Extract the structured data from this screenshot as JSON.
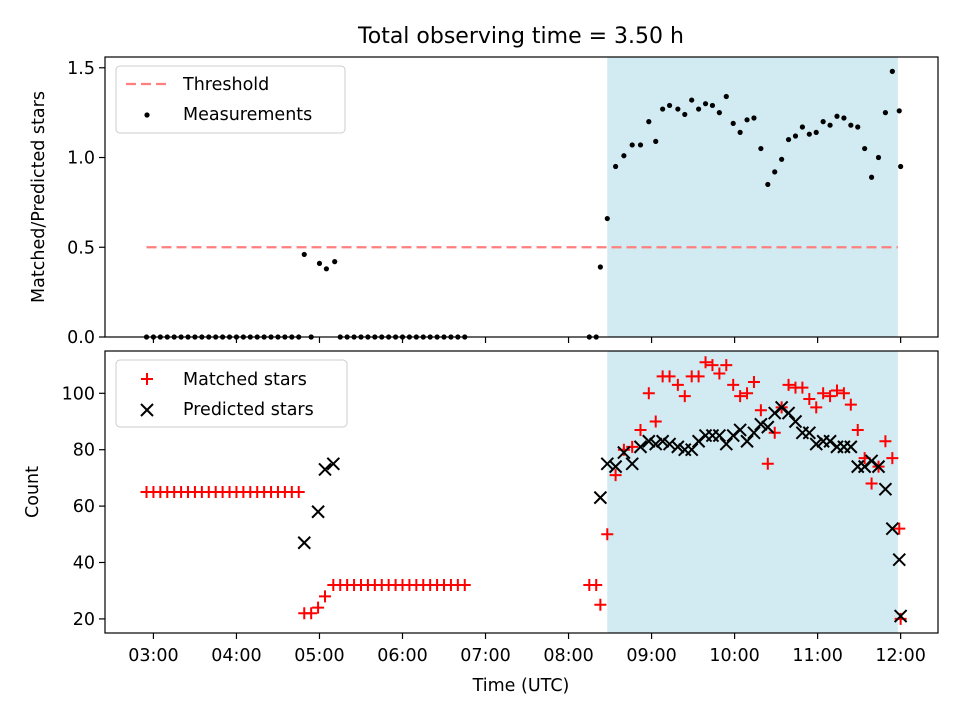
{
  "figure": {
    "title": "Total observing time = 3.50 h",
    "xlabel": "Time (UTC)"
  },
  "chart_data": [
    {
      "type": "scatter",
      "ylabel": "Matched/Predicted stars",
      "xlim": [
        "02:25",
        "12:27"
      ],
      "ylim": [
        0,
        1.56
      ],
      "yticks": [
        0.0,
        0.5,
        1.0,
        1.5
      ],
      "yticklabels": [
        "0.0",
        "0.5",
        "1.0",
        "1.5"
      ],
      "shaded_interval": [
        "08:28",
        "11:58"
      ],
      "shaded_color": "#add8e6",
      "legend_position": "upper-left",
      "threshold": {
        "name": "Threshold",
        "y": 0.5,
        "x_range": [
          "02:55",
          "11:58"
        ],
        "color": "#ff7f7f",
        "style": "dashed"
      },
      "series": [
        {
          "name": "Measurements",
          "color": "#000000",
          "marker": "dot",
          "points": [
            [
              "02:55",
              0
            ],
            [
              "03:00",
              0
            ],
            [
              "03:05",
              0
            ],
            [
              "03:10",
              0
            ],
            [
              "03:15",
              0
            ],
            [
              "03:20",
              0
            ],
            [
              "03:25",
              0
            ],
            [
              "03:30",
              0
            ],
            [
              "03:35",
              0
            ],
            [
              "03:40",
              0
            ],
            [
              "03:45",
              0
            ],
            [
              "03:50",
              0
            ],
            [
              "03:55",
              0
            ],
            [
              "04:00",
              0
            ],
            [
              "04:05",
              0
            ],
            [
              "04:10",
              0
            ],
            [
              "04:15",
              0
            ],
            [
              "04:20",
              0
            ],
            [
              "04:25",
              0
            ],
            [
              "04:30",
              0
            ],
            [
              "04:35",
              0
            ],
            [
              "04:40",
              0
            ],
            [
              "04:45",
              0
            ],
            [
              "04:49",
              0.46
            ],
            [
              "04:54",
              0
            ],
            [
              "05:00",
              0.41
            ],
            [
              "05:05",
              0.38
            ],
            [
              "05:11",
              0.42
            ],
            [
              "05:15",
              0
            ],
            [
              "05:20",
              0
            ],
            [
              "05:25",
              0
            ],
            [
              "05:30",
              0
            ],
            [
              "05:35",
              0
            ],
            [
              "05:40",
              0
            ],
            [
              "05:45",
              0
            ],
            [
              "05:50",
              0
            ],
            [
              "05:55",
              0
            ],
            [
              "06:00",
              0
            ],
            [
              "06:05",
              0
            ],
            [
              "06:10",
              0
            ],
            [
              "06:15",
              0
            ],
            [
              "06:20",
              0
            ],
            [
              "06:25",
              0
            ],
            [
              "06:30",
              0
            ],
            [
              "06:35",
              0
            ],
            [
              "06:40",
              0
            ],
            [
              "06:45",
              0
            ],
            [
              "08:15",
              0
            ],
            [
              "08:20",
              0
            ],
            [
              "08:23",
              0.39
            ],
            [
              "08:28",
              0.66
            ],
            [
              "08:34",
              0.95
            ],
            [
              "08:40",
              1.01
            ],
            [
              "08:46",
              1.07
            ],
            [
              "08:52",
              1.07
            ],
            [
              "08:58",
              1.2
            ],
            [
              "09:03",
              1.09
            ],
            [
              "09:08",
              1.27
            ],
            [
              "09:13",
              1.29
            ],
            [
              "09:19",
              1.27
            ],
            [
              "09:24",
              1.24
            ],
            [
              "09:29",
              1.32
            ],
            [
              "09:34",
              1.27
            ],
            [
              "09:39",
              1.3
            ],
            [
              "09:44",
              1.29
            ],
            [
              "09:49",
              1.25
            ],
            [
              "09:54",
              1.34
            ],
            [
              "09:59",
              1.19
            ],
            [
              "10:04",
              1.14
            ],
            [
              "10:09",
              1.21
            ],
            [
              "10:14",
              1.22
            ],
            [
              "10:19",
              1.05
            ],
            [
              "10:24",
              0.85
            ],
            [
              "10:29",
              0.92
            ],
            [
              "10:34",
              0.99
            ],
            [
              "10:39",
              1.1
            ],
            [
              "10:44",
              1.12
            ],
            [
              "10:49",
              1.17
            ],
            [
              "10:54",
              1.13
            ],
            [
              "10:59",
              1.14
            ],
            [
              "11:04",
              1.2
            ],
            [
              "11:09",
              1.18
            ],
            [
              "11:14",
              1.23
            ],
            [
              "11:19",
              1.22
            ],
            [
              "11:24",
              1.18
            ],
            [
              "11:29",
              1.17
            ],
            [
              "11:34",
              1.05
            ],
            [
              "11:39",
              0.89
            ],
            [
              "11:44",
              1.0
            ],
            [
              "11:49",
              1.25
            ],
            [
              "11:54",
              1.48
            ],
            [
              "11:59",
              1.26
            ],
            [
              "12:00",
              0.95
            ]
          ]
        }
      ]
    },
    {
      "type": "scatter",
      "ylabel": "Count",
      "xlim": [
        "02:25",
        "12:27"
      ],
      "ylim": [
        15,
        115
      ],
      "yticks": [
        20,
        40,
        60,
        80,
        100
      ],
      "yticklabels": [
        "20",
        "40",
        "60",
        "80",
        "100"
      ],
      "xticks": [
        "03:00",
        "04:00",
        "05:00",
        "06:00",
        "07:00",
        "08:00",
        "09:00",
        "10:00",
        "11:00",
        "12:00"
      ],
      "xticklabels": [
        "03:00",
        "04:00",
        "05:00",
        "06:00",
        "07:00",
        "08:00",
        "09:00",
        "10:00",
        "11:00",
        "12:00"
      ],
      "shaded_interval": [
        "08:28",
        "11:58"
      ],
      "shaded_color": "#add8e6",
      "legend_position": "upper-left",
      "series": [
        {
          "name": "Matched stars",
          "color": "#ff0000",
          "marker": "plus",
          "points": [
            [
              "02:55",
              65
            ],
            [
              "03:00",
              65
            ],
            [
              "03:05",
              65
            ],
            [
              "03:10",
              65
            ],
            [
              "03:15",
              65
            ],
            [
              "03:20",
              65
            ],
            [
              "03:25",
              65
            ],
            [
              "03:30",
              65
            ],
            [
              "03:35",
              65
            ],
            [
              "03:40",
              65
            ],
            [
              "03:45",
              65
            ],
            [
              "03:50",
              65
            ],
            [
              "03:55",
              65
            ],
            [
              "04:00",
              65
            ],
            [
              "04:05",
              65
            ],
            [
              "04:10",
              65
            ],
            [
              "04:15",
              65
            ],
            [
              "04:20",
              65
            ],
            [
              "04:25",
              65
            ],
            [
              "04:30",
              65
            ],
            [
              "04:35",
              65
            ],
            [
              "04:40",
              65
            ],
            [
              "04:45",
              65
            ],
            [
              "04:49",
              22
            ],
            [
              "04:54",
              22
            ],
            [
              "04:59",
              24
            ],
            [
              "05:04",
              28
            ],
            [
              "05:10",
              32
            ],
            [
              "05:15",
              32
            ],
            [
              "05:20",
              32
            ],
            [
              "05:25",
              32
            ],
            [
              "05:30",
              32
            ],
            [
              "05:35",
              32
            ],
            [
              "05:40",
              32
            ],
            [
              "05:45",
              32
            ],
            [
              "05:50",
              32
            ],
            [
              "05:55",
              32
            ],
            [
              "06:00",
              32
            ],
            [
              "06:05",
              32
            ],
            [
              "06:10",
              32
            ],
            [
              "06:15",
              32
            ],
            [
              "06:20",
              32
            ],
            [
              "06:25",
              32
            ],
            [
              "06:30",
              32
            ],
            [
              "06:35",
              32
            ],
            [
              "06:40",
              32
            ],
            [
              "06:45",
              32
            ],
            [
              "08:15",
              32
            ],
            [
              "08:20",
              32
            ],
            [
              "08:23",
              25
            ],
            [
              "08:28",
              50
            ],
            [
              "08:34",
              71
            ],
            [
              "08:40",
              80
            ],
            [
              "08:46",
              81
            ],
            [
              "08:52",
              87
            ],
            [
              "08:58",
              100
            ],
            [
              "09:03",
              90
            ],
            [
              "09:08",
              106
            ],
            [
              "09:13",
              106
            ],
            [
              "09:19",
              103
            ],
            [
              "09:24",
              99
            ],
            [
              "09:29",
              106
            ],
            [
              "09:34",
              106
            ],
            [
              "09:39",
              111
            ],
            [
              "09:44",
              110
            ],
            [
              "09:49",
              107
            ],
            [
              "09:54",
              110
            ],
            [
              "09:59",
              103
            ],
            [
              "10:04",
              99
            ],
            [
              "10:09",
              100
            ],
            [
              "10:14",
              104
            ],
            [
              "10:19",
              94
            ],
            [
              "10:24",
              75
            ],
            [
              "10:29",
              86
            ],
            [
              "10:34",
              95
            ],
            [
              "10:39",
              103
            ],
            [
              "10:44",
              102
            ],
            [
              "10:49",
              102
            ],
            [
              "10:54",
              98
            ],
            [
              "10:59",
              95
            ],
            [
              "11:04",
              100
            ],
            [
              "11:09",
              99
            ],
            [
              "11:14",
              101
            ],
            [
              "11:19",
              100
            ],
            [
              "11:24",
              96
            ],
            [
              "11:29",
              87
            ],
            [
              "11:34",
              77
            ],
            [
              "11:39",
              68
            ],
            [
              "11:44",
              74
            ],
            [
              "11:49",
              83
            ],
            [
              "11:54",
              77
            ],
            [
              "11:59",
              52
            ],
            [
              "12:00",
              20
            ]
          ]
        },
        {
          "name": "Predicted stars",
          "color": "#000000",
          "marker": "cross",
          "points": [
            [
              "04:49",
              47
            ],
            [
              "04:59",
              58
            ],
            [
              "05:04",
              73
            ],
            [
              "05:10",
              75
            ],
            [
              "08:23",
              63
            ],
            [
              "08:28",
              75
            ],
            [
              "08:34",
              74
            ],
            [
              "08:40",
              79
            ],
            [
              "08:46",
              75
            ],
            [
              "08:52",
              81
            ],
            [
              "08:58",
              83
            ],
            [
              "09:03",
              82
            ],
            [
              "09:08",
              83
            ],
            [
              "09:13",
              82
            ],
            [
              "09:19",
              81
            ],
            [
              "09:24",
              80
            ],
            [
              "09:29",
              80
            ],
            [
              "09:34",
              83
            ],
            [
              "09:39",
              85
            ],
            [
              "09:44",
              85
            ],
            [
              "09:49",
              85
            ],
            [
              "09:54",
              82
            ],
            [
              "09:59",
              85
            ],
            [
              "10:04",
              87
            ],
            [
              "10:09",
              83
            ],
            [
              "10:14",
              86
            ],
            [
              "10:19",
              89
            ],
            [
              "10:24",
              88
            ],
            [
              "10:29",
              93
            ],
            [
              "10:34",
              95
            ],
            [
              "10:39",
              93
            ],
            [
              "10:44",
              90
            ],
            [
              "10:49",
              86
            ],
            [
              "10:54",
              86
            ],
            [
              "10:59",
              82
            ],
            [
              "11:04",
              83
            ],
            [
              "11:09",
              83
            ],
            [
              "11:14",
              81
            ],
            [
              "11:19",
              81
            ],
            [
              "11:24",
              81
            ],
            [
              "11:29",
              74
            ],
            [
              "11:34",
              74
            ],
            [
              "11:39",
              76
            ],
            [
              "11:44",
              74
            ],
            [
              "11:49",
              66
            ],
            [
              "11:54",
              52
            ],
            [
              "11:59",
              41
            ],
            [
              "12:00",
              21
            ]
          ]
        }
      ]
    }
  ]
}
